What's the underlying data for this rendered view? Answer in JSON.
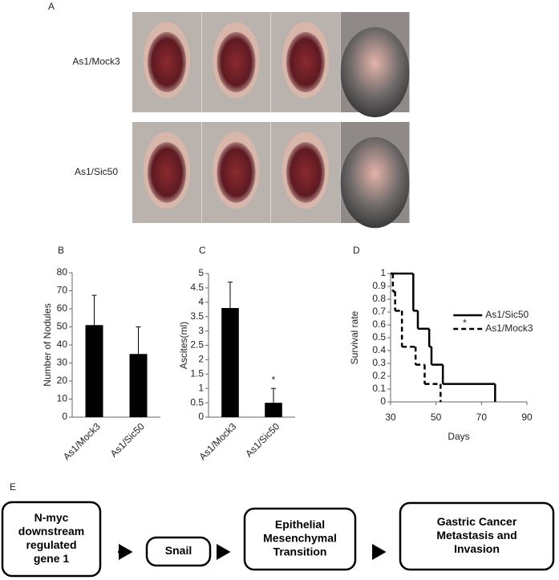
{
  "panel_labels": [
    "A",
    "B",
    "C",
    "D",
    "E"
  ],
  "panel_a": {
    "rows": [
      "As1/Mock3",
      "As1/Sic50"
    ]
  },
  "chart_data": [
    {
      "type": "bar",
      "ylabel": "Number of Nodules",
      "categories": [
        "As1/Mock3",
        "As1/Sic50"
      ],
      "values": [
        51,
        35
      ],
      "errors": [
        16.5,
        15
      ],
      "color": "#000000",
      "ylim": [
        0,
        80
      ],
      "yticks": [
        0,
        10,
        20,
        30,
        40,
        50,
        60,
        70,
        80
      ]
    },
    {
      "type": "bar",
      "ylabel": "Ascites(ml)",
      "categories": [
        "As1/Mock3",
        "As1/Sic50"
      ],
      "values": [
        3.8,
        0.5
      ],
      "errors": [
        0.9,
        0.5
      ],
      "color": "#000000",
      "annotation": "*",
      "ylim": [
        0,
        5
      ],
      "yticks": [
        0,
        0.5,
        1,
        1.5,
        2,
        2.5,
        3,
        3.5,
        4,
        4.5,
        5
      ]
    },
    {
      "type": "line",
      "step": true,
      "xlabel": "Days",
      "ylabel": "Survival rate",
      "annotation": "*",
      "xlim": [
        30,
        90
      ],
      "xticks": [
        30,
        50,
        70,
        90
      ],
      "ylim": [
        0,
        1
      ],
      "yticks": [
        0,
        0.1,
        0.2,
        0.3,
        0.4,
        0.5,
        0.6,
        0.7,
        0.8,
        0.9,
        1
      ],
      "legend": "upper right",
      "series": [
        {
          "name": "As1/Sic50",
          "color": "#000000",
          "dash": false,
          "x": [
            30,
            40,
            42,
            47,
            48,
            53,
            76
          ],
          "values": [
            1,
            0.71,
            0.57,
            0.43,
            0.29,
            0.14,
            0
          ]
        },
        {
          "name": "As1/Mock3",
          "color": "#000000",
          "dash": true,
          "x": [
            30,
            31,
            32,
            35,
            41,
            45,
            52
          ],
          "values": [
            1,
            0.86,
            0.71,
            0.43,
            0.29,
            0.14,
            0
          ]
        }
      ]
    }
  ],
  "flowchart": {
    "nodes": [
      {
        "lines": [
          "N-myc",
          "downstream",
          "regulated",
          "gene 1"
        ]
      },
      {
        "lines": [
          "Snail"
        ]
      },
      {
        "lines": [
          "Epithelial",
          "Mesenchymal",
          "Transition"
        ]
      },
      {
        "lines": [
          "Gastric Cancer",
          "Metastasis  and",
          "Invasion"
        ]
      }
    ]
  }
}
